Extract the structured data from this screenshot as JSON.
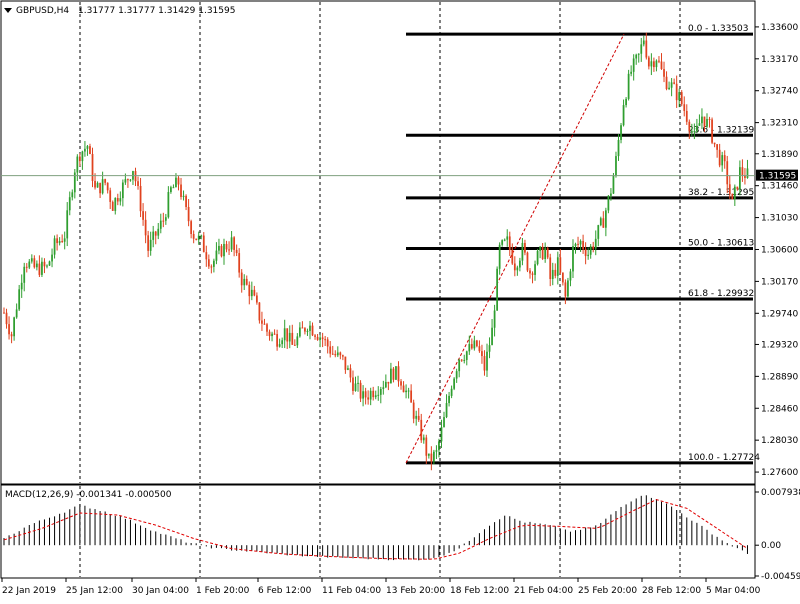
{
  "header": {
    "symbol": "GBPUSD,H4",
    "ohlc": "1.31777 1.31777 1.31429 1.31595"
  },
  "macd": {
    "label": "MACD(12,26,9) -0.001341 -0.000500",
    "ticks": [
      "0.007938",
      "0.00",
      "-0.004595"
    ]
  },
  "current_price": "1.31595",
  "colors": {
    "bull": "#2f9e2f",
    "bear": "#e0421f",
    "grid": "#000000",
    "fib": "#000000",
    "macd_hist": "#000000",
    "macd_signal": "#e00000",
    "price_line": "#7fa07f"
  },
  "chart_data": {
    "type": "candlestick",
    "price_ticks": [
      "1.33600",
      "1.33170",
      "1.32740",
      "1.32310",
      "1.31890",
      "1.31460",
      "1.31030",
      "1.30600",
      "1.30170",
      "1.29740",
      "1.29320",
      "1.28890",
      "1.28460",
      "1.28030",
      "1.27600"
    ],
    "price_tick_values": [
      1.336,
      1.3317,
      1.3274,
      1.3231,
      1.3189,
      1.3146,
      1.3103,
      1.306,
      1.3017,
      1.2974,
      1.2932,
      1.2889,
      1.2846,
      1.2803,
      1.276
    ],
    "time_labels": [
      "22 Jan 2019",
      "25 Jan 12:00",
      "30 Jan 04:00",
      "1 Feb 20:00",
      "6 Feb 12:00",
      "11 Feb 04:00",
      "13 Feb 20:00",
      "18 Feb 12:00",
      "21 Feb 04:00",
      "25 Feb 20:00",
      "28 Feb 12:00",
      "5 Mar 04:00"
    ],
    "ylim": [
      1.2752,
      1.3372
    ],
    "fibonacci": {
      "levels": [
        {
          "label": "0.0 - 1.33503",
          "value": 1.33503
        },
        {
          "label": "23.6 - 1.32139",
          "value": 1.32139
        },
        {
          "label": "38.2 - 1.31295",
          "value": 1.31295
        },
        {
          "label": "50.0 - 1.30613",
          "value": 1.30613
        },
        {
          "label": "61.8 - 1.29932",
          "value": 1.29932
        },
        {
          "label": "100.0 - 1.27724",
          "value": 1.27724
        }
      ]
    },
    "trendline": {
      "from": 1.27724,
      "to": 1.33503
    },
    "candles_anchor": [
      [
        0,
        1.2975
      ],
      [
        3,
        1.2945
      ],
      [
        8,
        1.3045
      ],
      [
        12,
        1.3035
      ],
      [
        17,
        1.3035
      ],
      [
        20,
        1.3065
      ],
      [
        24,
        1.308
      ],
      [
        28,
        1.317
      ],
      [
        30,
        1.319
      ],
      [
        33,
        1.32
      ],
      [
        36,
        1.314
      ],
      [
        40,
        1.315
      ],
      [
        43,
        1.312
      ],
      [
        46,
        1.314
      ],
      [
        48,
        1.315
      ],
      [
        51,
        1.317
      ],
      [
        54,
        1.312
      ],
      [
        57,
        1.306
      ],
      [
        60,
        1.308
      ],
      [
        63,
        1.31
      ],
      [
        66,
        1.314
      ],
      [
        69,
        1.315
      ],
      [
        72,
        1.311
      ],
      [
        75,
        1.308
      ],
      [
        78,
        1.307
      ],
      [
        82,
        1.304
      ],
      [
        86,
        1.306
      ],
      [
        90,
        1.307
      ],
      [
        94,
        1.302
      ],
      [
        98,
        1.3
      ],
      [
        101,
        1.297
      ],
      [
        104,
        1.295
      ],
      [
        108,
        1.294
      ],
      [
        111,
        1.295
      ],
      [
        114,
        1.293
      ],
      [
        117,
        1.2945
      ],
      [
        120,
        1.296
      ],
      [
        123,
        1.295
      ],
      [
        126,
        1.294
      ],
      [
        130,
        1.292
      ],
      [
        134,
        1.291
      ],
      [
        138,
        1.288
      ],
      [
        142,
        1.286
      ],
      [
        146,
        1.287
      ],
      [
        150,
        1.288
      ],
      [
        154,
        1.2895
      ],
      [
        157,
        1.2885
      ],
      [
        160,
        1.286
      ],
      [
        163,
        1.283
      ],
      [
        166,
        1.28
      ],
      [
        168,
        1.2775
      ],
      [
        171,
        1.2785
      ],
      [
        174,
        1.283
      ],
      [
        177,
        1.288
      ],
      [
        180,
        1.2915
      ],
      [
        184,
        1.2925
      ],
      [
        187,
        1.293
      ],
      [
        190,
        1.29
      ],
      [
        193,
        1.295
      ],
      [
        196,
        1.306
      ],
      [
        199,
        1.307
      ],
      [
        202,
        1.304
      ],
      [
        205,
        1.306
      ],
      [
        208,
        1.303
      ],
      [
        211,
        1.305
      ],
      [
        214,
        1.306
      ],
      [
        216,
        1.302
      ],
      [
        219,
        1.304
      ],
      [
        222,
        1.2995
      ],
      [
        225,
        1.306
      ],
      [
        228,
        1.307
      ],
      [
        231,
        1.3055
      ],
      [
        234,
        1.3075
      ],
      [
        237,
        1.31
      ],
      [
        240,
        1.314
      ],
      [
        242,
        1.318
      ],
      [
        245,
        1.326
      ],
      [
        248,
        1.33
      ],
      [
        251,
        1.332
      ],
      [
        253,
        1.3345
      ],
      [
        255,
        1.331
      ],
      [
        258,
        1.332
      ],
      [
        261,
        1.329
      ],
      [
        264,
        1.328
      ],
      [
        267,
        1.3265
      ],
      [
        270,
        1.324
      ],
      [
        273,
        1.321
      ],
      [
        276,
        1.324
      ],
      [
        279,
        1.3225
      ],
      [
        282,
        1.319
      ],
      [
        285,
        1.317
      ],
      [
        288,
        1.312
      ],
      [
        291,
        1.3165
      ],
      [
        294,
        1.316
      ]
    ],
    "macd_anchor": [
      [
        0,
        0.001
      ],
      [
        10,
        0.003
      ],
      [
        24,
        0.005
      ],
      [
        30,
        0.006
      ],
      [
        40,
        0.005
      ],
      [
        48,
        0.004
      ],
      [
        60,
        0.002
      ],
      [
        72,
        0.0005
      ],
      [
        84,
        -0.0005
      ],
      [
        100,
        -0.001
      ],
      [
        115,
        -0.0015
      ],
      [
        130,
        -0.0018
      ],
      [
        145,
        -0.002
      ],
      [
        160,
        -0.0022
      ],
      [
        170,
        -0.002
      ],
      [
        180,
        -0.0005
      ],
      [
        190,
        0.0025
      ],
      [
        198,
        0.0045
      ],
      [
        205,
        0.0035
      ],
      [
        215,
        0.003
      ],
      [
        225,
        0.002
      ],
      [
        235,
        0.003
      ],
      [
        245,
        0.006
      ],
      [
        252,
        0.0075
      ],
      [
        258,
        0.007
      ],
      [
        265,
        0.0055
      ],
      [
        275,
        0.003
      ],
      [
        285,
        0.0005
      ],
      [
        294,
        -0.0013
      ]
    ],
    "macd_signal_anchor": [
      [
        0,
        0.0008
      ],
      [
        15,
        0.0025
      ],
      [
        30,
        0.0048
      ],
      [
        45,
        0.0045
      ],
      [
        60,
        0.003
      ],
      [
        75,
        0.001
      ],
      [
        90,
        -0.0005
      ],
      [
        110,
        -0.0013
      ],
      [
        130,
        -0.0017
      ],
      [
        150,
        -0.002
      ],
      [
        170,
        -0.0021
      ],
      [
        180,
        -0.0012
      ],
      [
        192,
        0.001
      ],
      [
        205,
        0.003
      ],
      [
        220,
        0.0028
      ],
      [
        235,
        0.0025
      ],
      [
        248,
        0.005
      ],
      [
        258,
        0.0068
      ],
      [
        270,
        0.0055
      ],
      [
        282,
        0.0025
      ],
      [
        294,
        -0.0005
      ]
    ]
  }
}
